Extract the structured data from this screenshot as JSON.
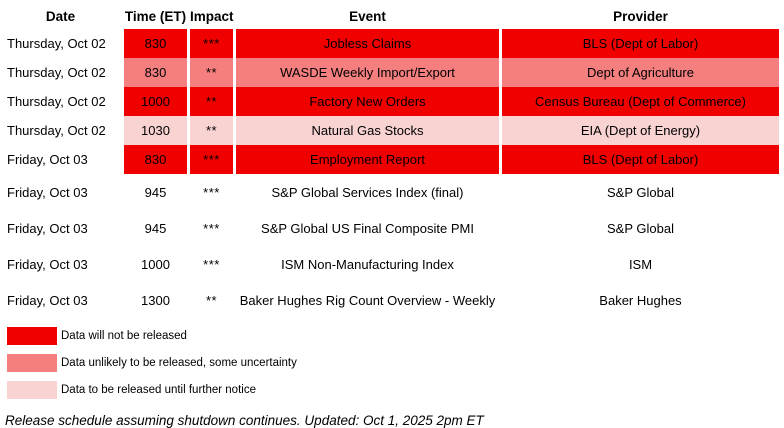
{
  "colors": {
    "red": "#F10000",
    "salmon": "#F57F7F",
    "pink": "#F9D2D2"
  },
  "table": {
    "columns": [
      {
        "key": "date",
        "label": "Date"
      },
      {
        "key": "time",
        "label": "Time (ET)"
      },
      {
        "key": "impact",
        "label": "Impact"
      },
      {
        "key": "event",
        "label": "Event"
      },
      {
        "key": "provider",
        "label": "Provider"
      }
    ],
    "rows": [
      {
        "date": "Thursday, Oct 02",
        "time": "830",
        "impact": "***",
        "event": "Jobless Claims",
        "provider": "BLS (Dept of Labor)",
        "status": "red"
      },
      {
        "date": "Thursday, Oct 02",
        "time": "830",
        "impact": "**",
        "event": "WASDE Weekly Import/Export",
        "provider": "Dept of Agriculture",
        "status": "salmon"
      },
      {
        "date": "Thursday, Oct 02",
        "time": "1000",
        "impact": "**",
        "event": "Factory New Orders",
        "provider": "Census Bureau (Dept of Commerce)",
        "status": "red"
      },
      {
        "date": "Thursday, Oct 02",
        "time": "1030",
        "impact": "**",
        "event": "Natural Gas Stocks",
        "provider": "EIA (Dept of Energy)",
        "status": "pink"
      },
      {
        "date": "Friday, Oct 03",
        "time": "830",
        "impact": "***",
        "event": "Employment Report",
        "provider": "BLS (Dept of Labor)",
        "status": "red"
      },
      {
        "date": "Friday, Oct 03",
        "time": "945",
        "impact": "***",
        "event": "S&P Global Services Index (final)",
        "provider": "S&P Global",
        "status": "none"
      },
      {
        "date": "Friday, Oct 03",
        "time": "945",
        "impact": "***",
        "event": "S&P Global US Final Composite PMI",
        "provider": "S&P Global",
        "status": "none"
      },
      {
        "date": "Friday, Oct 03",
        "time": "1000",
        "impact": "***",
        "event": "ISM Non-Manufacturing Index",
        "provider": "ISM",
        "status": "none"
      },
      {
        "date": "Friday, Oct 03",
        "time": "1300",
        "impact": "**",
        "event": "Baker Hughes Rig Count Overview - Weekly",
        "provider": "Baker Hughes",
        "status": "none"
      }
    ]
  },
  "legend": {
    "items": [
      {
        "color_key": "red",
        "label": "Data will not be released"
      },
      {
        "color_key": "salmon",
        "label": "Data unlikely to be released, some uncertainty"
      },
      {
        "color_key": "pink",
        "label": "Data to be released until further notice"
      }
    ]
  },
  "footer": {
    "note": "Release schedule assuming shutdown continues. Updated: Oct 1, 2025 2pm ET"
  }
}
